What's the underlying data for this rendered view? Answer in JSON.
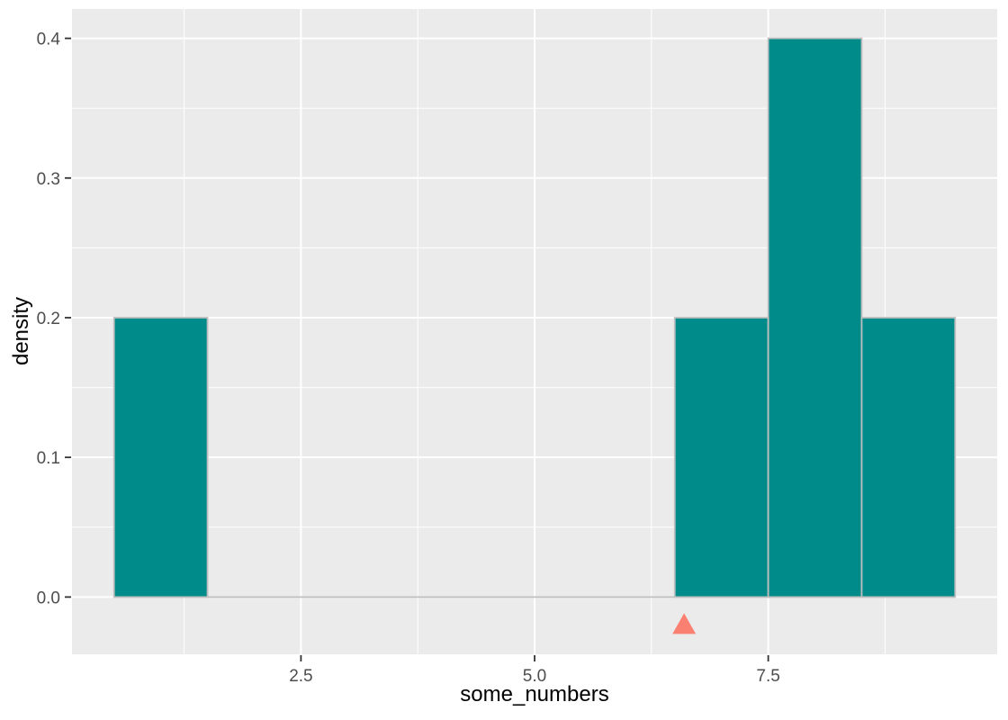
{
  "chart_data": {
    "type": "bar",
    "subtype": "density-histogram",
    "title": "",
    "xlabel": "some_numbers",
    "ylabel": "density",
    "x_range": [
      0.05,
      9.95
    ],
    "y_range": [
      -0.041,
      0.421
    ],
    "bin_width": 1,
    "bins": [
      {
        "x0": 0.5,
        "x1": 1.5,
        "density": 0.2
      },
      {
        "x0": 1.5,
        "x1": 2.5,
        "density": 0.0
      },
      {
        "x0": 2.5,
        "x1": 3.5,
        "density": 0.0
      },
      {
        "x0": 3.5,
        "x1": 4.5,
        "density": 0.0
      },
      {
        "x0": 4.5,
        "x1": 5.5,
        "density": 0.0
      },
      {
        "x0": 5.5,
        "x1": 6.5,
        "density": 0.0
      },
      {
        "x0": 6.5,
        "x1": 7.5,
        "density": 0.2
      },
      {
        "x0": 7.5,
        "x1": 8.5,
        "density": 0.4
      },
      {
        "x0": 8.5,
        "x1": 9.5,
        "density": 0.2
      }
    ],
    "mean_marker": {
      "x": 6.6,
      "y": -0.02,
      "shape": "triangle-up",
      "color": "#FA8072"
    },
    "x_major_ticks": [
      {
        "value": 2.5,
        "label": "2.5"
      },
      {
        "value": 5.0,
        "label": "5.0"
      },
      {
        "value": 7.5,
        "label": "7.5"
      }
    ],
    "y_major_ticks": [
      {
        "value": 0.0,
        "label": "0.0"
      },
      {
        "value": 0.1,
        "label": "0.1"
      },
      {
        "value": 0.2,
        "label": "0.2"
      },
      {
        "value": 0.3,
        "label": "0.3"
      },
      {
        "value": 0.4,
        "label": "0.4"
      }
    ],
    "x_minor_ticks": [
      1.25,
      3.75,
      6.25,
      8.75
    ],
    "y_minor_ticks": [
      0.05,
      0.15,
      0.25,
      0.35
    ],
    "grid": true,
    "legend_position": "none",
    "style": {
      "outer_bg": "#FFFFFF",
      "panel_bg": "#EBEBEB",
      "grid_color": "#FFFFFF",
      "bar_fill": "#008B8B",
      "bar_stroke": "#BEBEBE",
      "tick_color": "#333333",
      "axis_text_color": "#4D4D4D",
      "title_color": "#000000"
    }
  }
}
